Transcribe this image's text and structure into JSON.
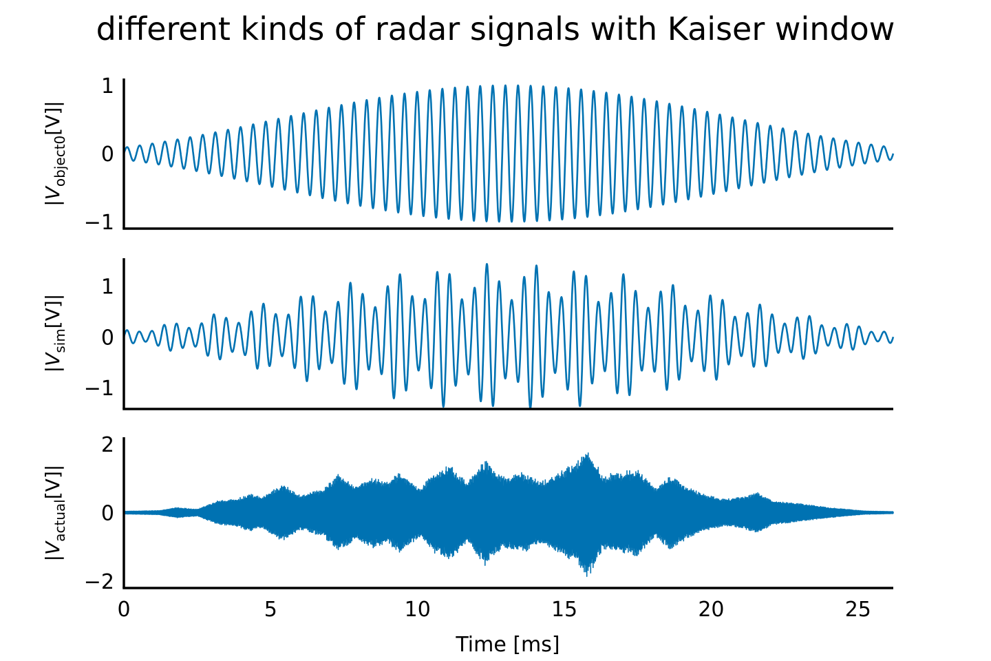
{
  "figure": {
    "title": "different kinds of radar signals with Kaiser window",
    "xlabel": "Time [ms]"
  },
  "style": {
    "line_color": "#0072B2",
    "axis_color": "#000000",
    "background": "#ffffff"
  },
  "chart_data": [
    {
      "type": "line",
      "ylabel_main": "|V",
      "ylabel_sub": "object0",
      "ylabel_tail": "[V]|",
      "xlim": [
        0,
        26.2
      ],
      "ylim": [
        -1.1,
        1.1
      ],
      "yticks": [
        -1,
        0,
        1
      ],
      "ytick_labels": [
        "−1",
        "0",
        "1"
      ],
      "xticks": [],
      "xtick_labels": [],
      "signal": {
        "kind": "windowed_sine",
        "cycles": 61,
        "amplitude": 1.0,
        "window": "kaiser",
        "window_shape": 4,
        "duration_ms": 26.2
      },
      "grid": false,
      "legend": "none"
    },
    {
      "type": "line",
      "ylabel_main": "|V",
      "ylabel_sub": "sim",
      "ylabel_tail": "[V]|",
      "xlim": [
        0,
        26.2
      ],
      "ylim": [
        -1.42,
        1.55
      ],
      "yticks": [
        -1,
        0,
        1
      ],
      "ytick_labels": [
        "−1",
        "0",
        "1"
      ],
      "xticks": [],
      "xtick_labels": [],
      "signal": {
        "kind": "windowed_beat",
        "cycles": 62,
        "amplitude": 1.45,
        "beat_period_ms": 1.55,
        "beat_depth": 0.25,
        "window": "kaiser",
        "window_shape": 4,
        "duration_ms": 26.2
      },
      "grid": false,
      "legend": "none"
    },
    {
      "type": "line",
      "ylabel_main": "|V",
      "ylabel_sub": "actual",
      "ylabel_tail": "[V]|",
      "xlim": [
        0,
        26.2
      ],
      "ylim": [
        -2.2,
        2.2
      ],
      "yticks": [
        -2,
        0,
        2
      ],
      "ytick_labels": [
        "−2",
        "0",
        "2"
      ],
      "xticks": [
        0,
        5,
        10,
        15,
        20,
        25
      ],
      "xtick_labels": [
        "0",
        "5",
        "10",
        "15",
        "20",
        "25"
      ],
      "signal": {
        "kind": "dense_bursts",
        "amplitude_peak": 2.0,
        "duration_ms": 26.2
      },
      "burst_envelope": [
        [
          0.0,
          0.04
        ],
        [
          1.2,
          0.06
        ],
        [
          1.8,
          0.15
        ],
        [
          2.5,
          0.1
        ],
        [
          3.2,
          0.35
        ],
        [
          3.8,
          0.4
        ],
        [
          4.3,
          0.55
        ],
        [
          4.7,
          0.45
        ],
        [
          5.4,
          0.85
        ],
        [
          6.0,
          0.5
        ],
        [
          6.8,
          0.7
        ],
        [
          7.3,
          1.15
        ],
        [
          7.9,
          0.8
        ],
        [
          8.5,
          1.05
        ],
        [
          9.0,
          0.9
        ],
        [
          9.4,
          1.2
        ],
        [
          10.1,
          0.7
        ],
        [
          10.5,
          1.15
        ],
        [
          11.1,
          1.4
        ],
        [
          11.7,
          0.9
        ],
        [
          12.3,
          1.55
        ],
        [
          12.9,
          1.05
        ],
        [
          13.6,
          1.2
        ],
        [
          14.2,
          0.9
        ],
        [
          14.8,
          1.2
        ],
        [
          15.4,
          1.5
        ],
        [
          15.8,
          1.95
        ],
        [
          16.3,
          1.1
        ],
        [
          16.9,
          1.2
        ],
        [
          17.5,
          1.3
        ],
        [
          18.1,
          0.7
        ],
        [
          18.6,
          1.1
        ],
        [
          19.2,
          0.75
        ],
        [
          19.7,
          0.55
        ],
        [
          20.4,
          0.4
        ],
        [
          21.0,
          0.45
        ],
        [
          21.6,
          0.6
        ],
        [
          22.1,
          0.35
        ],
        [
          22.7,
          0.3
        ],
        [
          23.4,
          0.22
        ],
        [
          24.0,
          0.15
        ],
        [
          24.6,
          0.1
        ],
        [
          25.2,
          0.05
        ],
        [
          26.2,
          0.03
        ]
      ],
      "grid": false,
      "legend": "none"
    }
  ]
}
